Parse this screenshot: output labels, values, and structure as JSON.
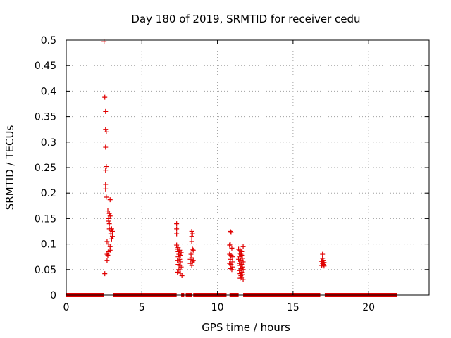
{
  "chart_data": {
    "type": "scatter",
    "title": "Day 180 of 2019, SRMTID for receiver cedu",
    "xlabel": "GPS time / hours",
    "ylabel": "SRMTID / TECUs",
    "xlim": [
      0,
      24
    ],
    "ylim": [
      0,
      0.5
    ],
    "xticks": [
      0,
      5,
      10,
      15,
      20
    ],
    "xtick_labels": [
      "0",
      "5",
      "10",
      "15",
      "20"
    ],
    "yticks": [
      0,
      0.05,
      0.1,
      0.15,
      0.2,
      0.25,
      0.3,
      0.35,
      0.4,
      0.45,
      0.5
    ],
    "ytick_labels": [
      "0",
      "0.05",
      "0.1",
      "0.15",
      "0.2",
      "0.25",
      "0.3",
      "0.35",
      "0.4",
      "0.45",
      "0.5"
    ],
    "grid": true,
    "marker": "+",
    "color": "#e00000",
    "zero_segments": [
      [
        0.0,
        2.5
      ],
      [
        3.1,
        7.3
      ],
      [
        7.6,
        7.8
      ],
      [
        7.9,
        8.3
      ],
      [
        8.4,
        10.6
      ],
      [
        10.8,
        11.4
      ],
      [
        11.7,
        16.8
      ],
      [
        17.1,
        21.9
      ]
    ],
    "points": [
      [
        2.5,
        0.497
      ],
      [
        2.55,
        0.388
      ],
      [
        2.6,
        0.36
      ],
      [
        2.6,
        0.325
      ],
      [
        2.65,
        0.32
      ],
      [
        2.6,
        0.29
      ],
      [
        2.65,
        0.252
      ],
      [
        2.6,
        0.245
      ],
      [
        2.6,
        0.217
      ],
      [
        2.6,
        0.208
      ],
      [
        2.65,
        0.192
      ],
      [
        2.9,
        0.187
      ],
      [
        2.75,
        0.165
      ],
      [
        2.85,
        0.16
      ],
      [
        2.9,
        0.155
      ],
      [
        2.8,
        0.15
      ],
      [
        2.8,
        0.145
      ],
      [
        2.85,
        0.14
      ],
      [
        2.85,
        0.13
      ],
      [
        3.0,
        0.13
      ],
      [
        2.95,
        0.127
      ],
      [
        3.05,
        0.125
      ],
      [
        2.95,
        0.12
      ],
      [
        3.05,
        0.115
      ],
      [
        3.0,
        0.11
      ],
      [
        2.7,
        0.105
      ],
      [
        2.8,
        0.1
      ],
      [
        2.9,
        0.095
      ],
      [
        2.9,
        0.088
      ],
      [
        2.8,
        0.085
      ],
      [
        2.7,
        0.08
      ],
      [
        2.75,
        0.078
      ],
      [
        2.7,
        0.068
      ],
      [
        2.55,
        0.042
      ],
      [
        7.3,
        0.14
      ],
      [
        7.3,
        0.13
      ],
      [
        7.3,
        0.12
      ],
      [
        7.3,
        0.098
      ],
      [
        7.4,
        0.093
      ],
      [
        7.35,
        0.09
      ],
      [
        7.5,
        0.088
      ],
      [
        7.4,
        0.085
      ],
      [
        7.6,
        0.083
      ],
      [
        7.45,
        0.08
      ],
      [
        7.55,
        0.078
      ],
      [
        7.4,
        0.075
      ],
      [
        7.5,
        0.07
      ],
      [
        7.35,
        0.068
      ],
      [
        7.55,
        0.065
      ],
      [
        7.4,
        0.06
      ],
      [
        7.5,
        0.058
      ],
      [
        7.6,
        0.055
      ],
      [
        7.45,
        0.05
      ],
      [
        7.35,
        0.045
      ],
      [
        7.55,
        0.043
      ],
      [
        7.65,
        0.038
      ],
      [
        8.3,
        0.125
      ],
      [
        8.35,
        0.12
      ],
      [
        8.3,
        0.115
      ],
      [
        8.3,
        0.105
      ],
      [
        8.35,
        0.09
      ],
      [
        8.4,
        0.088
      ],
      [
        8.25,
        0.08
      ],
      [
        8.3,
        0.073
      ],
      [
        8.2,
        0.07
      ],
      [
        8.4,
        0.068
      ],
      [
        8.35,
        0.065
      ],
      [
        8.2,
        0.062
      ],
      [
        8.3,
        0.058
      ],
      [
        10.85,
        0.125
      ],
      [
        10.9,
        0.123
      ],
      [
        10.85,
        0.1
      ],
      [
        10.8,
        0.098
      ],
      [
        10.95,
        0.092
      ],
      [
        10.8,
        0.08
      ],
      [
        10.9,
        0.078
      ],
      [
        11.0,
        0.075
      ],
      [
        10.85,
        0.07
      ],
      [
        11.0,
        0.065
      ],
      [
        10.8,
        0.062
      ],
      [
        10.9,
        0.06
      ],
      [
        11.0,
        0.055
      ],
      [
        10.85,
        0.052
      ],
      [
        10.95,
        0.05
      ],
      [
        11.4,
        0.09
      ],
      [
        11.5,
        0.088
      ],
      [
        11.6,
        0.085
      ],
      [
        11.7,
        0.095
      ],
      [
        11.45,
        0.082
      ],
      [
        11.55,
        0.08
      ],
      [
        11.6,
        0.078
      ],
      [
        11.5,
        0.075
      ],
      [
        11.65,
        0.072
      ],
      [
        11.4,
        0.07
      ],
      [
        11.55,
        0.068
      ],
      [
        11.7,
        0.065
      ],
      [
        11.45,
        0.062
      ],
      [
        11.6,
        0.06
      ],
      [
        11.5,
        0.058
      ],
      [
        11.65,
        0.055
      ],
      [
        11.55,
        0.052
      ],
      [
        11.7,
        0.05
      ],
      [
        11.45,
        0.048
      ],
      [
        11.6,
        0.045
      ],
      [
        11.5,
        0.042
      ],
      [
        11.65,
        0.04
      ],
      [
        11.55,
        0.038
      ],
      [
        11.6,
        0.035
      ],
      [
        11.5,
        0.033
      ],
      [
        11.7,
        0.03
      ],
      [
        16.95,
        0.08
      ],
      [
        16.95,
        0.072
      ],
      [
        17.0,
        0.068
      ],
      [
        16.9,
        0.066
      ],
      [
        17.05,
        0.064
      ],
      [
        16.95,
        0.062
      ],
      [
        17.0,
        0.06
      ],
      [
        16.9,
        0.058
      ],
      [
        17.05,
        0.057
      ]
    ]
  }
}
